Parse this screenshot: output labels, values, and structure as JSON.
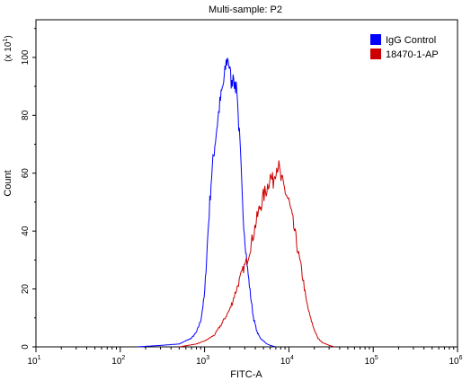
{
  "chart_data": {
    "type": "line",
    "title": "Multi-sample: P2",
    "xlabel": "FITC-A",
    "ylabel": "Count",
    "y_multiplier": "(x 10",
    "y_multiplier_exp": "1",
    "x_scale": "log",
    "xlim": [
      10,
      1000000
    ],
    "ylim": [
      0,
      113
    ],
    "x_ticks": [
      {
        "base": "10",
        "exp": "1"
      },
      {
        "base": "10",
        "exp": "2"
      },
      {
        "base": "10",
        "exp": "3"
      },
      {
        "base": "10",
        "exp": "4"
      },
      {
        "base": "10",
        "exp": "5"
      },
      {
        "base": "10",
        "exp": "6"
      }
    ],
    "y_ticks": [
      "0",
      "20",
      "40",
      "60",
      "80",
      "100"
    ],
    "legend_position": "top-right",
    "series": [
      {
        "name": "IgG Control",
        "color": "#0000ff",
        "x": [
          160,
          300,
          500,
          700,
          800,
          900,
          1000,
          1100,
          1200,
          1300,
          1400,
          1500,
          1600,
          1700,
          1800,
          1900,
          2000,
          2100,
          2200,
          2300,
          2400,
          2500,
          2600,
          2700,
          2800,
          3000,
          3200,
          3500,
          3800,
          4200,
          4600,
          5000,
          5500,
          6000,
          7000
        ],
        "y": [
          0,
          0.5,
          1,
          3,
          5,
          9,
          18,
          40,
          58,
          68,
          76,
          83,
          88,
          92,
          98,
          100,
          95,
          90,
          96,
          88,
          92,
          80,
          72,
          62,
          50,
          38,
          28,
          18,
          10,
          5,
          3,
          2,
          1,
          0.5,
          0
        ]
      },
      {
        "name": "18470-1-AP",
        "color": "#cc0000",
        "x": [
          500,
          800,
          1000,
          1300,
          1600,
          2000,
          2400,
          2800,
          3200,
          3600,
          4000,
          4500,
          5000,
          5500,
          6000,
          6500,
          7000,
          7500,
          8000,
          8500,
          9000,
          10000,
          11000,
          12000,
          13000,
          14000,
          15000,
          16000,
          18000,
          20000,
          22000,
          25000,
          30000,
          35000
        ],
        "y": [
          0,
          1,
          2,
          4,
          8,
          13,
          20,
          26,
          30,
          36,
          42,
          48,
          52,
          55,
          59,
          57,
          62,
          63,
          58,
          56,
          54,
          50,
          44,
          38,
          32,
          27,
          22,
          16,
          10,
          6,
          3,
          1.5,
          0.5,
          0
        ]
      }
    ]
  }
}
